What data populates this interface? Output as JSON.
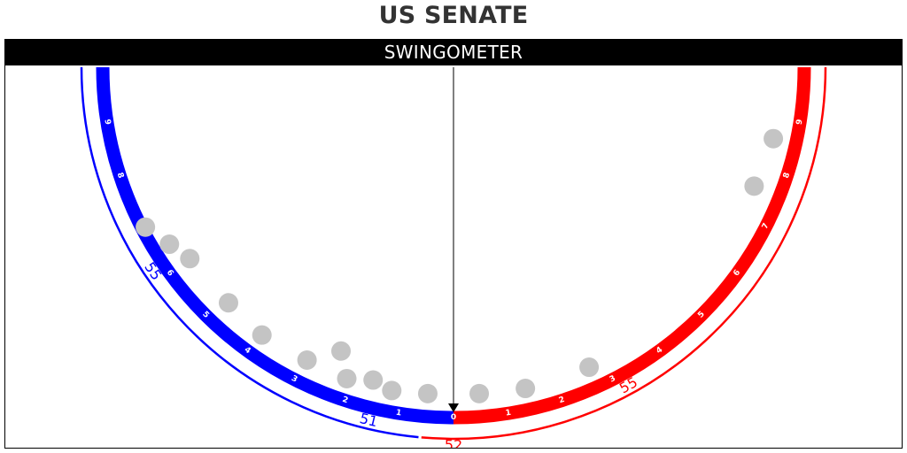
{
  "title": "US SENATE",
  "panel_header": "SWINGOMETER",
  "colors": {
    "dem": "#0000ff",
    "rep": "#ff0000",
    "seat_marker": "#c4c4c4",
    "pointer": "#000000",
    "background": "#ffffff"
  },
  "scale": {
    "dem_ticks": [
      "0",
      "1",
      "2",
      "3",
      "4",
      "5",
      "6",
      "7",
      "8",
      "9"
    ],
    "rep_ticks": [
      "1",
      "2",
      "3",
      "4",
      "5",
      "6",
      "7",
      "8",
      "9"
    ],
    "max_swing": 10
  },
  "current_swing": 0,
  "seat_count_labels": {
    "dem_inner": "55",
    "dem_outer": "51",
    "rep_inner": "55",
    "rep_outer": "52"
  },
  "seat_count_levels": {
    "dem_outer_end": 0.6,
    "dem_inner_start": 6.2,
    "rep_outer_end": 0,
    "rep_inner_start": 3.2
  },
  "seats_swing": [
    -0.5,
    -1.2,
    -1.6,
    -2.1,
    -2.4,
    -2.95,
    -3.95,
    -4.85,
    -6.0,
    -6.45,
    -6.95,
    0.5,
    1.4,
    2.7,
    7.6,
    8.6
  ]
}
